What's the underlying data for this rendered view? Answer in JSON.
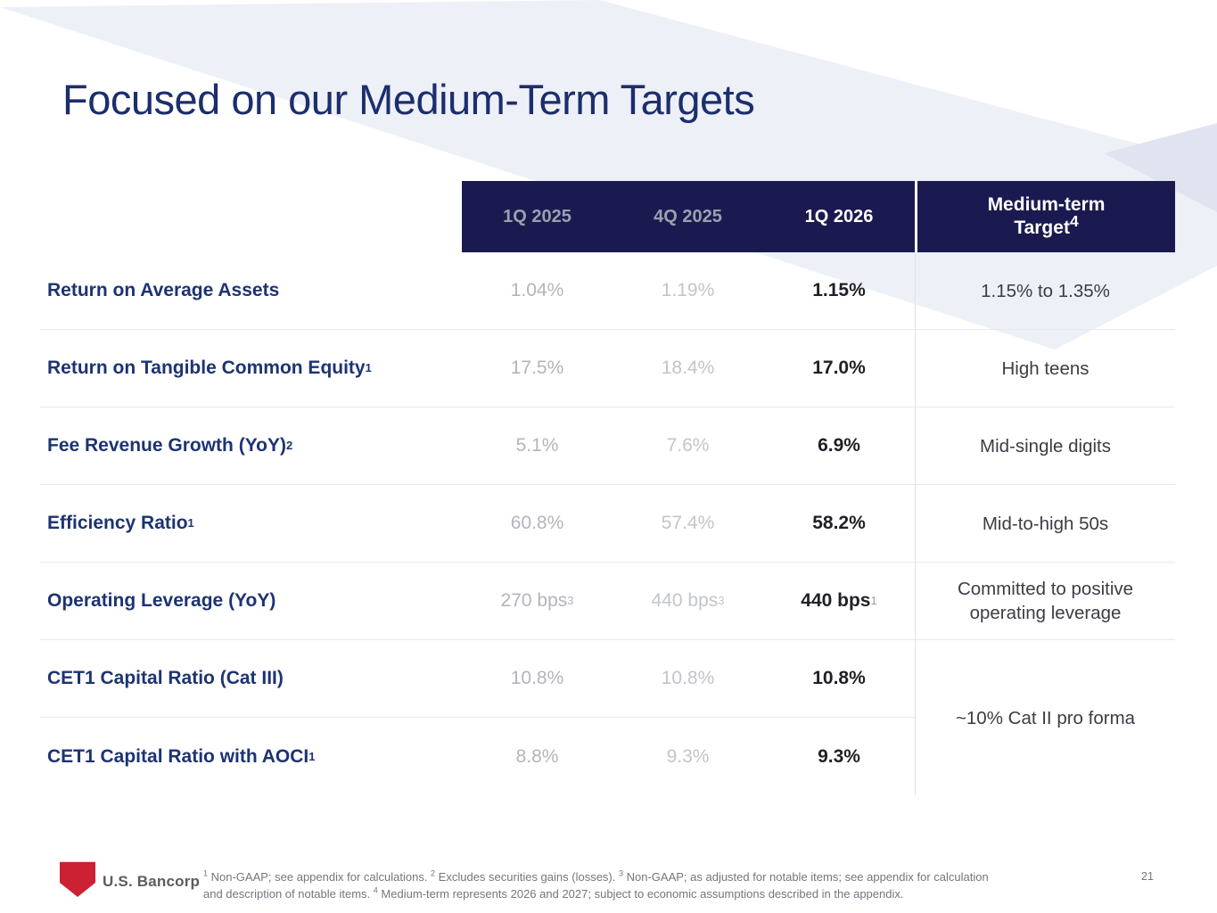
{
  "slide": {
    "title": "Focused on our Medium-Term Targets",
    "page_number": "21"
  },
  "colors": {
    "header_navy": "#1b1a50",
    "title_navy": "#1c2e6c",
    "label_navy": "#1d3372",
    "muted_value_gray": "#b2b5bc",
    "bold_value": "#1f2126",
    "logo_red": "#cc2033",
    "background_chevron": "#edf0f7"
  },
  "table": {
    "columns": [
      "1Q 2025",
      "4Q 2025",
      "1Q 2026"
    ],
    "target_header": {
      "line1": "Medium-term",
      "line2": "Target",
      "sup": "4"
    },
    "rows": [
      {
        "label": "Return on Average Assets",
        "label_sup": "",
        "v1": "1.04%",
        "v1_sup": "",
        "v2": "1.19%",
        "v2_sup": "",
        "v3": "1.15%",
        "v3_sup": "",
        "target": "1.15% to 1.35%"
      },
      {
        "label": "Return on Tangible Common Equity",
        "label_sup": "1",
        "v1": "17.5%",
        "v1_sup": "",
        "v2": "18.4%",
        "v2_sup": "",
        "v3": "17.0%",
        "v3_sup": "",
        "target": "High teens"
      },
      {
        "label": "Fee Revenue Growth (YoY)",
        "label_sup": "2",
        "v1": "5.1%",
        "v1_sup": "",
        "v2": "7.6%",
        "v2_sup": "",
        "v3": "6.9%",
        "v3_sup": "",
        "target": "Mid-single digits"
      },
      {
        "label": "Efficiency Ratio",
        "label_sup": "1",
        "v1": "60.8%",
        "v1_sup": "",
        "v2": "57.4%",
        "v2_sup": "",
        "v3": "58.2%",
        "v3_sup": "",
        "target": "Mid-to-high 50s"
      },
      {
        "label": "Operating Leverage (YoY)",
        "label_sup": "",
        "v1": "270 bps",
        "v1_sup": "3",
        "v2": "440 bps",
        "v2_sup": "3",
        "v3": "440 bps",
        "v3_sup": "1",
        "target": "Committed to positive operating leverage"
      },
      {
        "label": "CET1 Capital Ratio (Cat III)",
        "label_sup": "",
        "v1": "10.8%",
        "v1_sup": "",
        "v2": "10.8%",
        "v2_sup": "",
        "v3": "10.8%",
        "v3_sup": ""
      },
      {
        "label": "CET1 Capital Ratio with AOCI",
        "label_sup": "1",
        "v1": "8.8%",
        "v1_sup": "",
        "v2": "9.3%",
        "v2_sup": "",
        "v3": "9.3%",
        "v3_sup": ""
      }
    ],
    "merged_target": "~10% Cat II pro forma"
  },
  "footer": {
    "brand": "U.S. Bancorp",
    "footnote_line1": [
      {
        "sup": "1",
        "text": " Non-GAAP; see appendix for calculations. "
      },
      {
        "sup": "2",
        "text": " Excludes securities gains (losses).  "
      },
      {
        "sup": "3",
        "text": " Non-GAAP; as adjusted for notable items; see appendix for calculation"
      }
    ],
    "footnote_line2_start": "and description of notable items. ",
    "footnote_line2": [
      {
        "sup": "4",
        "text": " Medium-term represents 2026 and 2027; subject to economic assumptions described in the appendix."
      }
    ]
  }
}
